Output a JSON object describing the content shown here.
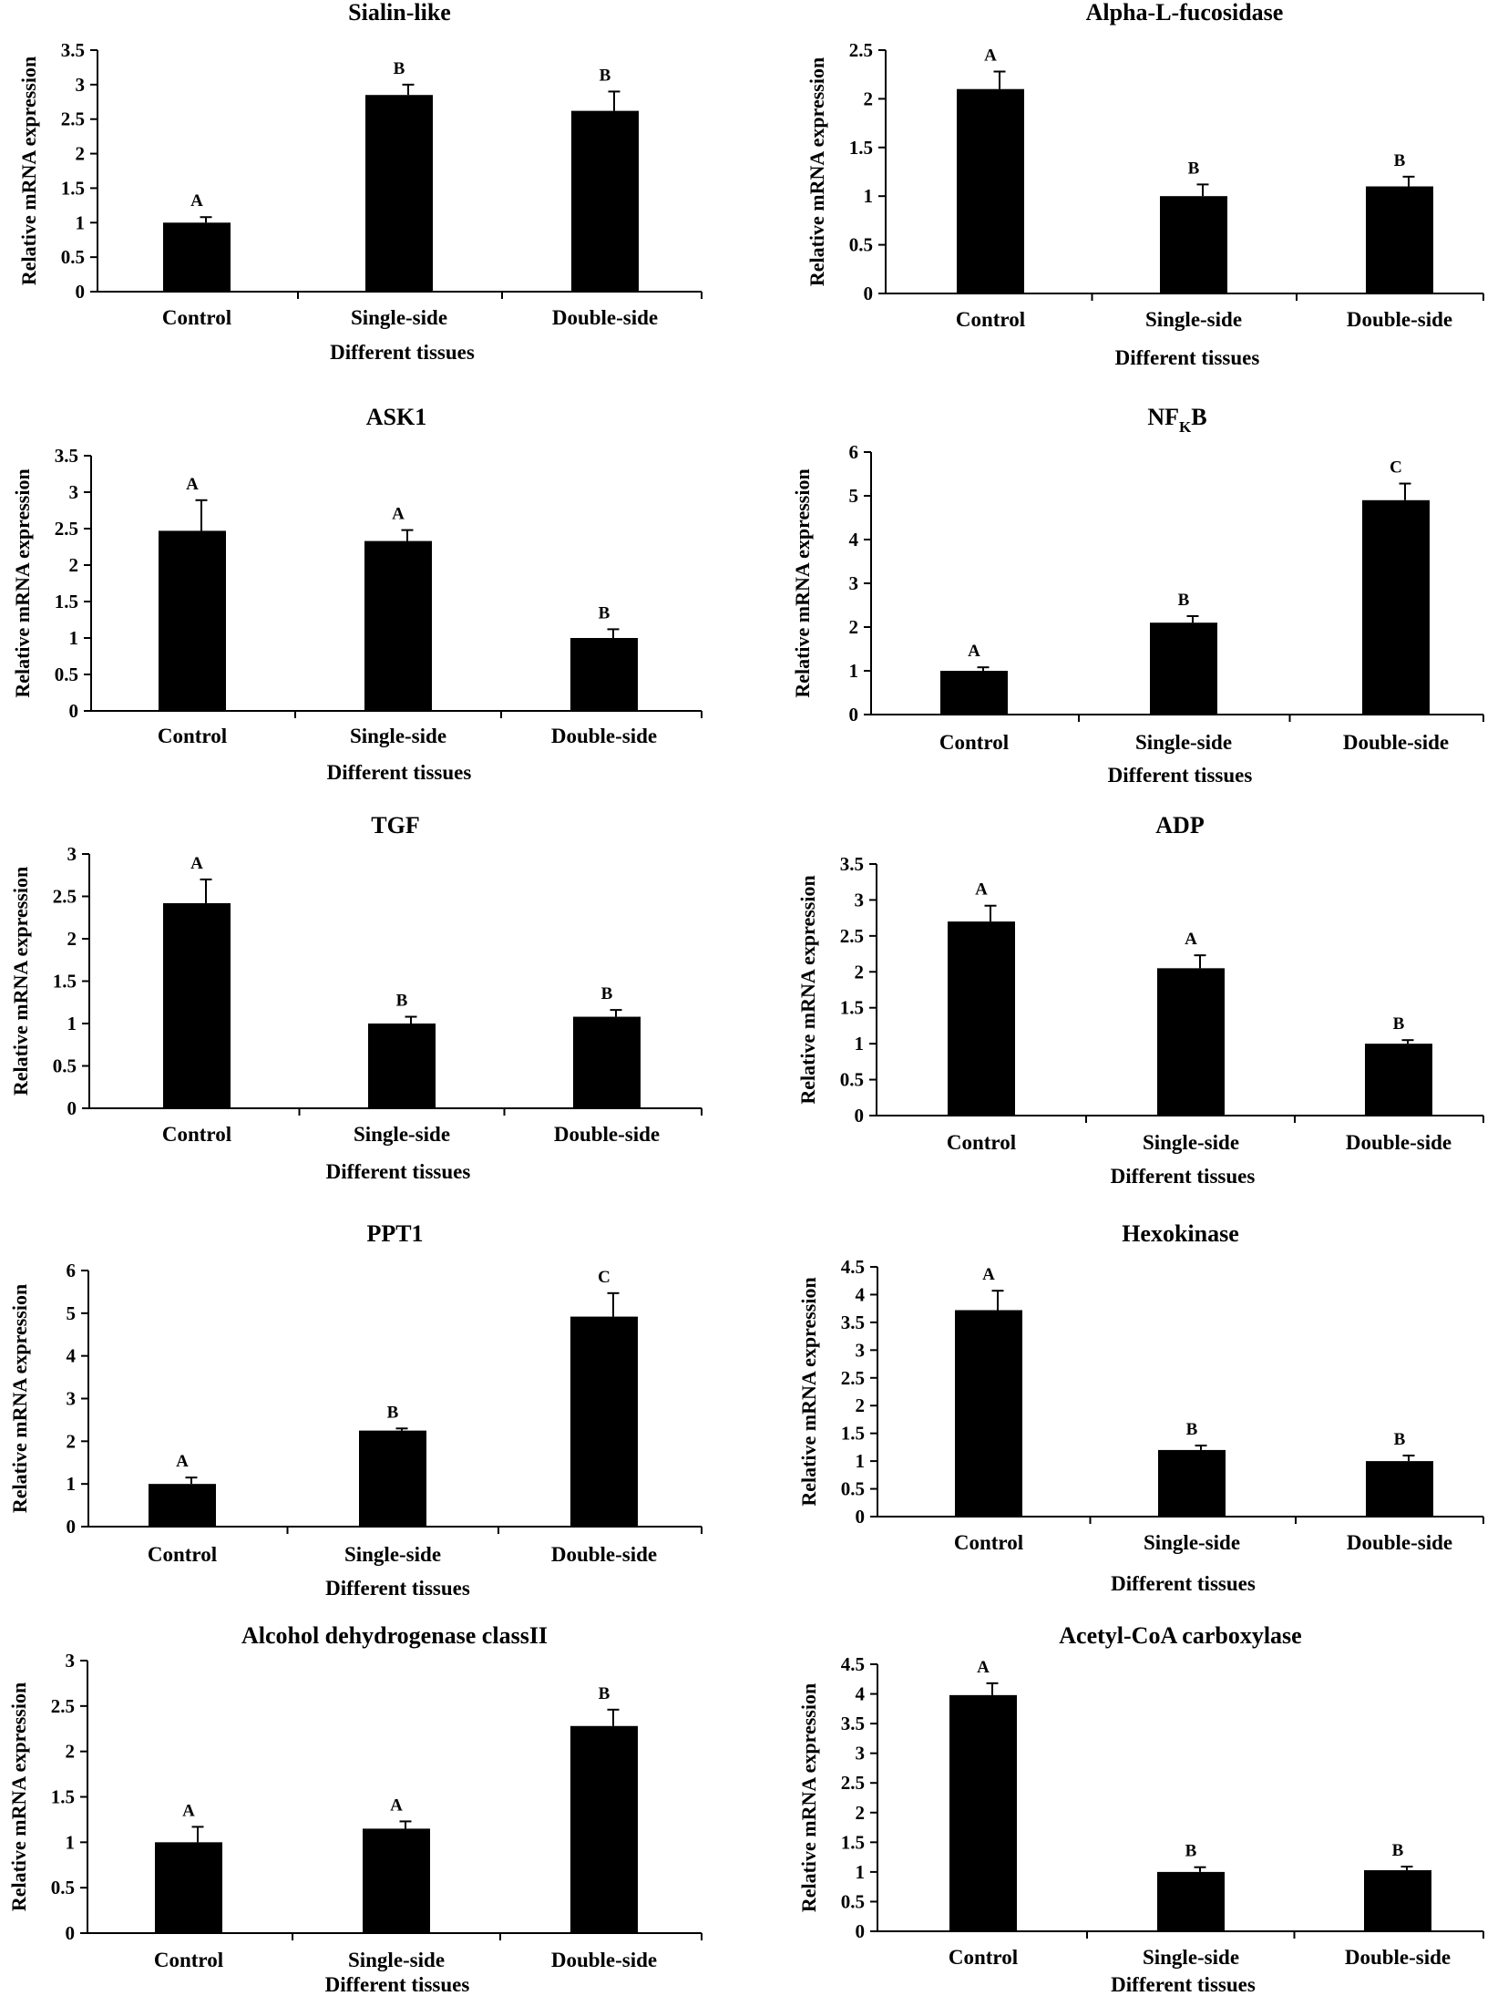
{
  "figure": {
    "domain": "bar-chart-grid"
  },
  "chart_data": [
    {
      "type": "bar",
      "title": "Sialin-like",
      "title_sub": "",
      "title_suffix": "",
      "categories": [
        "Control",
        "Single-side",
        "Double-side"
      ],
      "values": [
        1.0,
        2.85,
        2.62
      ],
      "errors": [
        0.08,
        0.15,
        0.28
      ],
      "letters": [
        "A",
        "B",
        "B"
      ],
      "ylabel": "Relative mRNA expression",
      "xlabel": "Different tissues",
      "ylim": [
        0,
        3.5
      ],
      "yticks": [
        0,
        0.5,
        1,
        1.5,
        2,
        2.5,
        3,
        3.5
      ],
      "ytick_labels": [
        "0",
        "0.5",
        "1",
        "1.5",
        "2",
        "2.5",
        "3",
        "3.5"
      ]
    },
    {
      "type": "bar",
      "title": "Alpha-L-fucosidase",
      "title_sub": "",
      "title_suffix": "",
      "categories": [
        "Control",
        "Single-side",
        "Double-side"
      ],
      "values": [
        2.1,
        1.0,
        1.1
      ],
      "errors": [
        0.18,
        0.12,
        0.1
      ],
      "letters": [
        "A",
        "B",
        "B"
      ],
      "ylabel": "Relative mRNA expression",
      "xlabel": "Different tissues",
      "ylim": [
        0,
        2.5
      ],
      "yticks": [
        0,
        0.5,
        1,
        1.5,
        2,
        2.5
      ],
      "ytick_labels": [
        "0",
        "0.5",
        "1",
        "1.5",
        "2",
        "2.5"
      ]
    },
    {
      "type": "bar",
      "title": "ASK1",
      "title_sub": "",
      "title_suffix": "",
      "categories": [
        "Control",
        "Single-side",
        "Double-side"
      ],
      "values": [
        2.47,
        2.33,
        1.0
      ],
      "errors": [
        0.42,
        0.15,
        0.12
      ],
      "letters": [
        "A",
        "A",
        "B"
      ],
      "ylabel": "Relative mRNA expression",
      "xlabel": "Different tissues",
      "ylim": [
        0,
        3.5
      ],
      "yticks": [
        0,
        0.5,
        1,
        1.5,
        2,
        2.5,
        3,
        3.5
      ],
      "ytick_labels": [
        "0",
        "0.5",
        "1",
        "1.5",
        "2",
        "2.5",
        "3",
        "3.5"
      ]
    },
    {
      "type": "bar",
      "title": "NF",
      "title_sub": "K",
      "title_suffix": "B",
      "categories": [
        "Control",
        "Single-side",
        "Double-side"
      ],
      "values": [
        1.0,
        2.1,
        4.9
      ],
      "errors": [
        0.08,
        0.15,
        0.38
      ],
      "letters": [
        "A",
        "B",
        "C"
      ],
      "ylabel": "Relative mRNA expression",
      "xlabel": "Different tissues",
      "ylim": [
        0,
        6
      ],
      "yticks": [
        0,
        1,
        2,
        3,
        4,
        5,
        6
      ],
      "ytick_labels": [
        "0",
        "1",
        "2",
        "3",
        "4",
        "5",
        "6"
      ]
    },
    {
      "type": "bar",
      "title": "TGF",
      "title_sub": "",
      "title_suffix": "",
      "categories": [
        "Control",
        "Single-side",
        "Double-side"
      ],
      "values": [
        2.42,
        1.0,
        1.08
      ],
      "errors": [
        0.28,
        0.08,
        0.08
      ],
      "letters": [
        "A",
        "B",
        "B"
      ],
      "ylabel": "Relative mRNA expression",
      "xlabel": "Different tissues",
      "ylim": [
        0,
        3
      ],
      "yticks": [
        0,
        0.5,
        1,
        1.5,
        2,
        2.5,
        3
      ],
      "ytick_labels": [
        "0",
        "0.5",
        "1",
        "1.5",
        "2",
        "2.5",
        "3"
      ]
    },
    {
      "type": "bar",
      "title": "ADP",
      "title_sub": "",
      "title_suffix": "",
      "categories": [
        "Control",
        "Single-side",
        "Double-side"
      ],
      "values": [
        2.7,
        2.05,
        1.0
      ],
      "errors": [
        0.22,
        0.18,
        0.05
      ],
      "letters": [
        "A",
        "A",
        "B"
      ],
      "ylabel": "Relative mRNA expression",
      "xlabel": "Different tissues",
      "ylim": [
        0,
        3.5
      ],
      "yticks": [
        0,
        0.5,
        1,
        1.5,
        2,
        2.5,
        3,
        3.5
      ],
      "ytick_labels": [
        "0",
        "0.5",
        "1",
        "1.5",
        "2",
        "2.5",
        "3",
        "3.5"
      ]
    },
    {
      "type": "bar",
      "title": "PPT1",
      "title_sub": "",
      "title_suffix": "",
      "categories": [
        "Control",
        "Single-side",
        "Double-side"
      ],
      "values": [
        1.0,
        2.25,
        4.92
      ],
      "errors": [
        0.15,
        0.05,
        0.55
      ],
      "letters": [
        "A",
        "B",
        "C"
      ],
      "ylabel": "Relative mRNA expression",
      "xlabel": "Different tissues",
      "ylim": [
        0,
        6
      ],
      "yticks": [
        0,
        1,
        2,
        3,
        4,
        5,
        6
      ],
      "ytick_labels": [
        "0",
        "1",
        "2",
        "3",
        "4",
        "5",
        "6"
      ]
    },
    {
      "type": "bar",
      "title": "Hexokinase",
      "title_sub": "",
      "title_suffix": "",
      "categories": [
        "Control",
        "Single-side",
        "Double-side"
      ],
      "values": [
        3.72,
        1.2,
        1.0
      ],
      "errors": [
        0.35,
        0.08,
        0.1
      ],
      "letters": [
        "A",
        "B",
        "B"
      ],
      "ylabel": "Relative mRNA expression",
      "xlabel": "Different tissues",
      "ylim": [
        0,
        4.5
      ],
      "yticks": [
        0,
        0.5,
        1,
        1.5,
        2,
        2.5,
        3,
        3.5,
        4,
        4.5
      ],
      "ytick_labels": [
        "0",
        "0.5",
        "1",
        "1.5",
        "2",
        "2.5",
        "3",
        "3.5",
        "4",
        "4.5"
      ]
    },
    {
      "type": "bar",
      "title": "Alcohol dehydrogenase class",
      "title_sub": "",
      "title_suffix": "II",
      "categories": [
        "Control",
        "Single-side",
        "Double-side"
      ],
      "values": [
        1.0,
        1.15,
        2.28
      ],
      "errors": [
        0.17,
        0.08,
        0.18
      ],
      "letters": [
        "A",
        "A",
        "B"
      ],
      "ylabel": "Relative mRNA expression",
      "xlabel": "Different tissues",
      "ylim": [
        0,
        3
      ],
      "yticks": [
        0,
        0.5,
        1,
        1.5,
        2,
        2.5,
        3
      ],
      "ytick_labels": [
        "0",
        "0.5",
        "1",
        "1.5",
        "2",
        "2.5",
        "3"
      ]
    },
    {
      "type": "bar",
      "title": "Acetyl-CoA carboxylase",
      "title_sub": "",
      "title_suffix": "",
      "categories": [
        "Control",
        "Single-side",
        "Double-side"
      ],
      "values": [
        3.98,
        1.0,
        1.03
      ],
      "errors": [
        0.2,
        0.08,
        0.06
      ],
      "letters": [
        "A",
        "B",
        "B"
      ],
      "ylabel": "Relative mRNA expression",
      "xlabel": "Different tissues",
      "ylim": [
        0,
        4.5
      ],
      "yticks": [
        0,
        0.5,
        1,
        1.5,
        2,
        2.5,
        3,
        3.5,
        4,
        4.5
      ],
      "ytick_labels": [
        "0",
        "0.5",
        "1",
        "1.5",
        "2",
        "2.5",
        "3",
        "3.5",
        "4",
        "4.5"
      ]
    }
  ]
}
